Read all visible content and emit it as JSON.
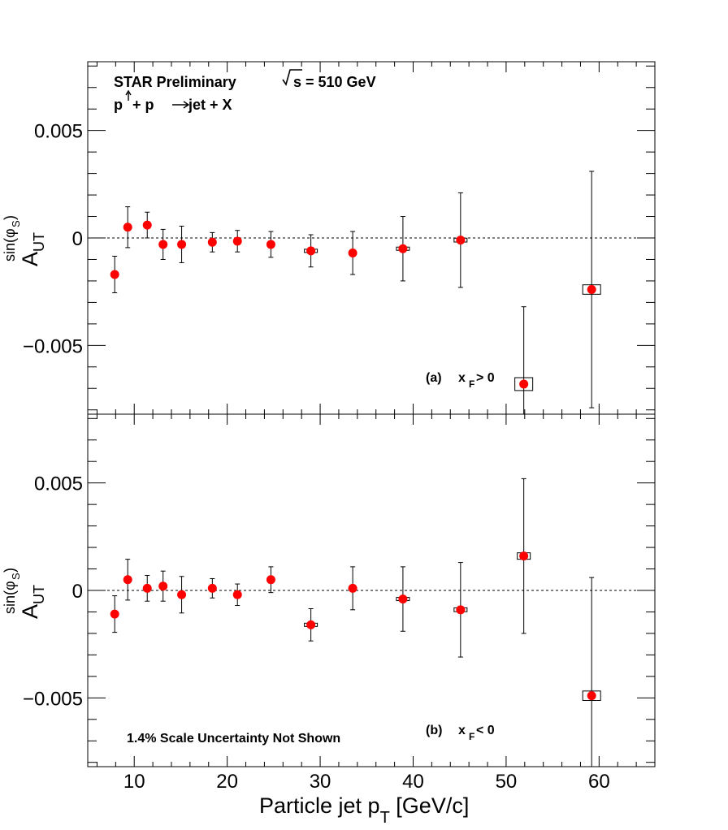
{
  "chart_data": {
    "type": "scatter",
    "xlabel_main": "Particle jet p",
    "xlabel_sub": "T",
    "xlabel_unit": " [GeV/c]",
    "ylabel_main": "A",
    "ylabel_sub": "UT",
    "ylabel_sup": "sin(φ",
    "ylabel_sup_sub": "S",
    "ylabel_sup_end": ")",
    "xlim": [
      5,
      66
    ],
    "ylim": [
      -0.0082,
      0.0082
    ],
    "x_ticks": [
      {
        "value": 10,
        "label": "10"
      },
      {
        "value": 20,
        "label": "20"
      },
      {
        "value": 30,
        "label": "30"
      },
      {
        "value": 40,
        "label": "40"
      },
      {
        "value": 50,
        "label": "50"
      },
      {
        "value": 60,
        "label": "60"
      }
    ],
    "y_ticks": [
      {
        "value": 0.005,
        "label": "0.005"
      },
      {
        "value": 0,
        "label": "0"
      },
      {
        "value": -0.005,
        "label": "−0.005"
      }
    ],
    "reference_line_y": 0,
    "header_line1": "STAR Preliminary",
    "header_sqrts": "s = 510 GeV",
    "header_line2_a": "p",
    "header_line2_b": " + p  ",
    "header_line2_c": " jet + X",
    "scale_note": "1.4% Scale Uncertainty Not Shown",
    "marker_color": "#ff0000",
    "panels": [
      {
        "label_prefix": "(a)",
        "label_var": "x",
        "label_var_sub": "F",
        "label_cond": " > 0",
        "points": [
          {
            "x": 7.9,
            "y": -0.0017,
            "err": 0.00085,
            "sys": 0.0
          },
          {
            "x": 9.3,
            "y": 0.0005,
            "err": 0.00095,
            "sys": 0.0
          },
          {
            "x": 11.4,
            "y": 0.0006,
            "err": 0.0006,
            "sys": 0.0
          },
          {
            "x": 13.1,
            "y": -0.0003,
            "err": 0.0007,
            "sys": 0.0
          },
          {
            "x": 15.1,
            "y": -0.0003,
            "err": 0.00085,
            "sys": 0.0
          },
          {
            "x": 18.4,
            "y": -0.0002,
            "err": 0.00045,
            "sys": 0.0
          },
          {
            "x": 21.1,
            "y": -0.00015,
            "err": 0.0005,
            "sys": 0.0
          },
          {
            "x": 24.7,
            "y": -0.0003,
            "err": 0.0006,
            "sys": 0.0
          },
          {
            "x": 29.0,
            "y": -0.0006,
            "err": 0.00075,
            "sys": 5e-05
          },
          {
            "x": 33.5,
            "y": -0.0007,
            "err": 0.001,
            "sys": 0.0
          },
          {
            "x": 38.9,
            "y": -0.0005,
            "err": 0.0015,
            "sys": 7e-05
          },
          {
            "x": 45.1,
            "y": -0.0001,
            "err": 0.0022,
            "sys": 9e-05
          },
          {
            "x": 51.9,
            "y": -0.0068,
            "err": 0.0036,
            "sys": 0.0003
          },
          {
            "x": 59.2,
            "y": -0.0024,
            "err": 0.0055,
            "sys": 0.00022
          }
        ]
      },
      {
        "label_prefix": "(b)",
        "label_var": "x",
        "label_var_sub": "F",
        "label_cond": " < 0",
        "points": [
          {
            "x": 7.9,
            "y": -0.0011,
            "err": 0.00085,
            "sys": 0.0
          },
          {
            "x": 9.3,
            "y": 0.0005,
            "err": 0.00095,
            "sys": 0.0
          },
          {
            "x": 11.4,
            "y": 0.0001,
            "err": 0.0006,
            "sys": 0.0
          },
          {
            "x": 13.1,
            "y": 0.0002,
            "err": 0.0007,
            "sys": 0.0
          },
          {
            "x": 15.1,
            "y": -0.0002,
            "err": 0.00085,
            "sys": 0.0
          },
          {
            "x": 18.4,
            "y": 0.0001,
            "err": 0.00045,
            "sys": 0.0
          },
          {
            "x": 21.1,
            "y": -0.0002,
            "err": 0.0005,
            "sys": 0.0
          },
          {
            "x": 24.7,
            "y": 0.0005,
            "err": 0.0006,
            "sys": 0.0
          },
          {
            "x": 29.0,
            "y": -0.0016,
            "err": 0.00075,
            "sys": 5e-05
          },
          {
            "x": 33.5,
            "y": 0.0001,
            "err": 0.001,
            "sys": 0.0
          },
          {
            "x": 38.9,
            "y": -0.0004,
            "err": 0.0015,
            "sys": 7e-05
          },
          {
            "x": 45.1,
            "y": -0.0009,
            "err": 0.0022,
            "sys": 9e-05
          },
          {
            "x": 51.9,
            "y": 0.0016,
            "err": 0.0036,
            "sys": 0.00015
          },
          {
            "x": 59.2,
            "y": -0.0049,
            "err": 0.0055,
            "sys": 0.00022
          }
        ]
      }
    ]
  }
}
